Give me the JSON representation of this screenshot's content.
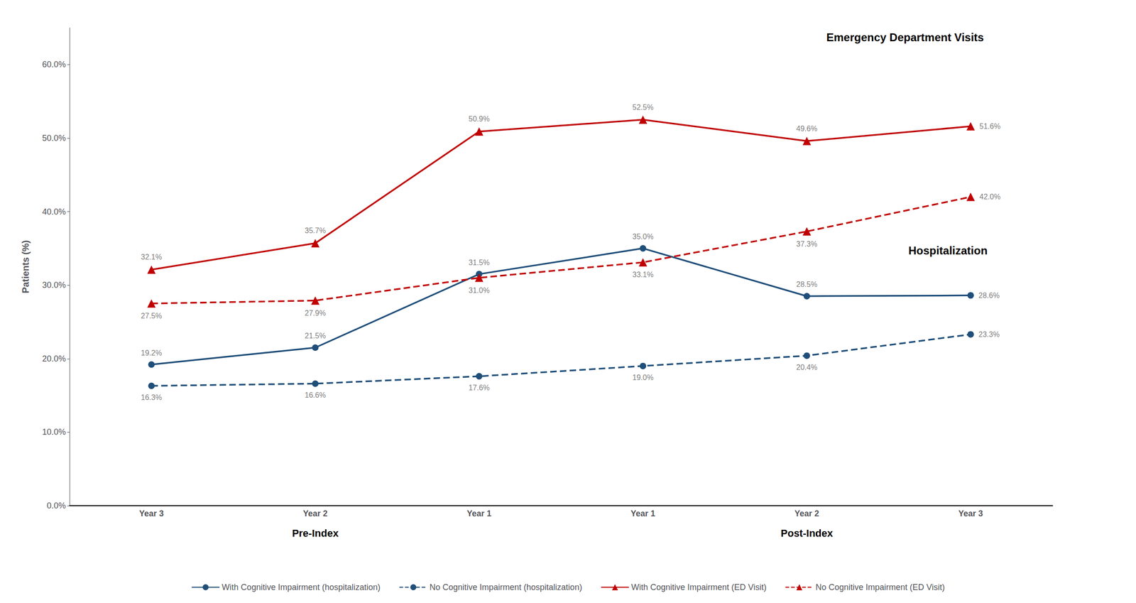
{
  "chart_data": {
    "type": "line",
    "categories": [
      "Year 3",
      "Year 2",
      "Year 1",
      "Year 1",
      "Year 2",
      "Year 3"
    ],
    "ylabel": "Patients (%)",
    "annotations": [
      "Emergency Department Visits",
      "Hospitalization",
      "Pre-Index",
      "Post-Index"
    ],
    "series": [
      {
        "name": "With Cognitive Impairment (hospitalization)",
        "color": "#1F4E79",
        "marker": "circle",
        "line_style": "solid",
        "values": [
          19.2,
          21.5,
          31.5,
          35.0,
          28.5,
          28.6
        ],
        "value_labels": [
          "19.2%",
          "21.5%",
          "31.5%",
          "35.0%",
          "28.5%",
          "28.6%"
        ]
      },
      {
        "name": "No Cognitive Impairment (hospitalization)",
        "color": "#1F4E79",
        "marker": "circle",
        "line_style": "dashed",
        "values": [
          16.3,
          16.6,
          17.6,
          19.0,
          20.4,
          23.3
        ],
        "value_labels": [
          "16.3%",
          "16.6%",
          "17.6%",
          "19.0%",
          "20.4%",
          "23.3%"
        ]
      },
      {
        "name": "With Cognitive Impairment (ED Visit)",
        "color": "#C00000",
        "marker": "triangle",
        "line_style": "solid",
        "values": [
          32.1,
          35.7,
          50.9,
          52.5,
          49.6,
          51.6
        ],
        "value_labels": [
          "32.1%",
          "35.7%",
          "50.9%",
          "52.5%",
          "49.6%",
          "51.6%"
        ]
      },
      {
        "name": "No Cognitive Impairment (ED Visit)",
        "color": "#C00000",
        "marker": "triangle",
        "line_style": "dashed",
        "values": [
          27.5,
          27.9,
          31.0,
          33.1,
          37.3,
          42.0
        ],
        "value_labels": [
          "27.5%",
          "27.9%",
          "31.0%",
          "33.1%",
          "37.3%",
          "42.0%"
        ]
      }
    ],
    "ylim": [
      0,
      65
    ],
    "yticks": [
      {
        "value": 0,
        "label": "0.0%"
      },
      {
        "value": 10,
        "label": "10.0%"
      },
      {
        "value": 20,
        "label": "20.0%"
      },
      {
        "value": 30,
        "label": "30.0%"
      },
      {
        "value": 40,
        "label": "40.0%"
      },
      {
        "value": 50,
        "label": "50.0%"
      },
      {
        "value": 60,
        "label": "60.0%"
      }
    ],
    "grid": false,
    "legend": "bottom",
    "data_labels": true
  }
}
